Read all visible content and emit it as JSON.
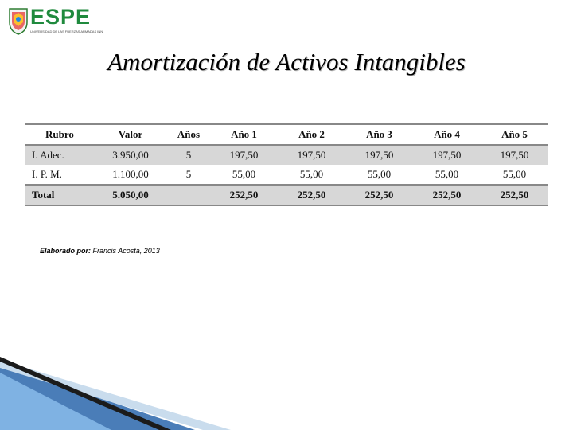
{
  "logo": {
    "name": "ESPE",
    "subtitle": "UNIVERSIDAD DE LAS FUERZAS ARMADAS INNOVACIÓN PARA LA EXCELENCIA"
  },
  "title": "Amortización de Activos Intangibles",
  "table": {
    "headers": [
      "Rubro",
      "Valor",
      "Años",
      "Año 1",
      "Año 2",
      "Año 3",
      "Año 4",
      "Año 5"
    ],
    "rows": [
      [
        "I. Adec.",
        "3.950,00",
        "5",
        "197,50",
        "197,50",
        "197,50",
        "197,50",
        "197,50"
      ],
      [
        "I. P. M.",
        "1.100,00",
        "5",
        "55,00",
        "55,00",
        "55,00",
        "55,00",
        "55,00"
      ]
    ],
    "total": [
      "Total",
      "5.050,00",
      "",
      "252,50",
      "252,50",
      "252,50",
      "252,50",
      "252,50"
    ]
  },
  "source": {
    "label": "Elaborado por:",
    "text": " Francis Acosta, 2013"
  },
  "colors": {
    "brand_green": "#1f8a3d",
    "row_shade": "#d7d7d7",
    "corner_blue": "#4a7db8"
  }
}
